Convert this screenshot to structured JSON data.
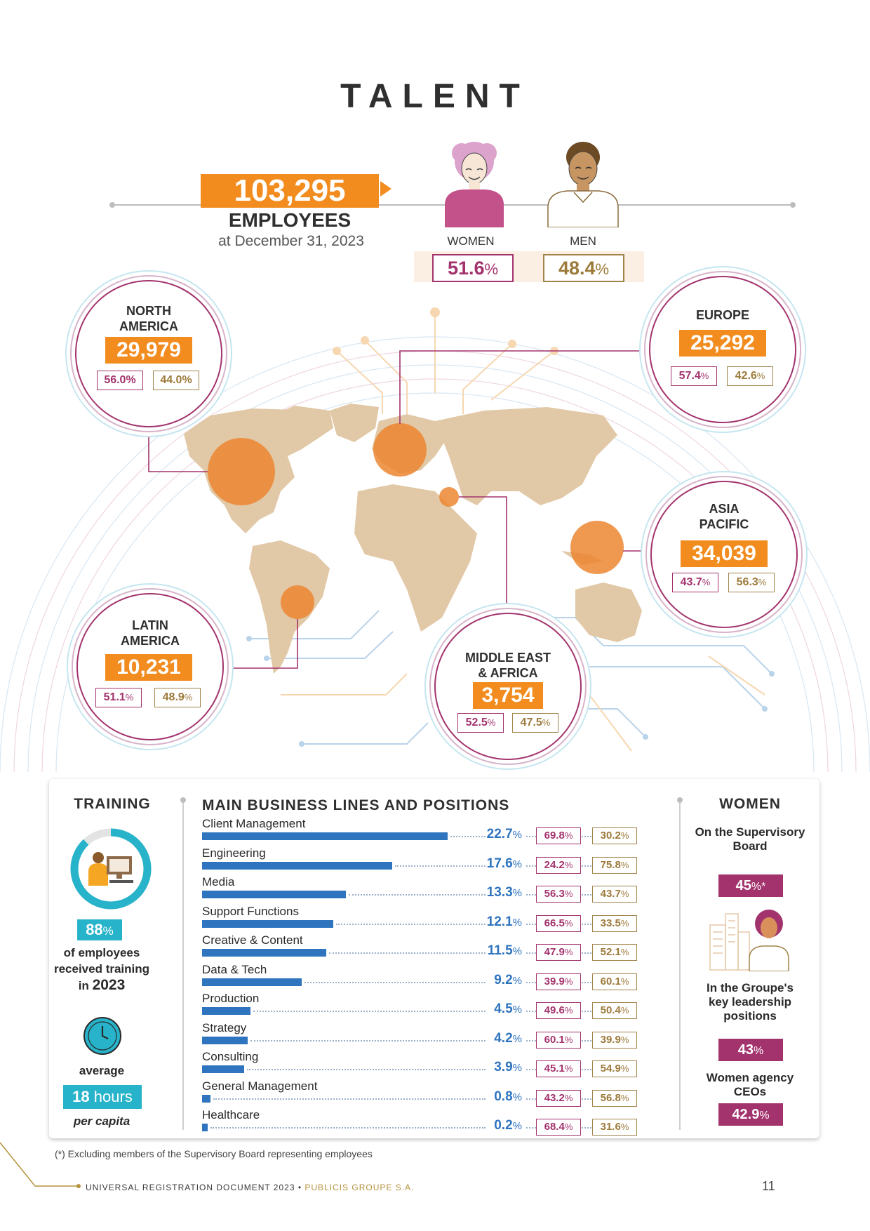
{
  "page_title": "TALENT",
  "employees": {
    "total": "103,295",
    "label": "EMPLOYEES",
    "date": "at December 31, 2023"
  },
  "gender": {
    "women_label": "WOMEN",
    "men_label": "MEN",
    "women_pct": "51.6",
    "men_pct": "48.4",
    "pct_sign": "%"
  },
  "regions": {
    "north_america": {
      "name_line1": "NORTH",
      "name_line2": "AMERICA",
      "count": "29,979",
      "women": "56.0%",
      "men": "44.0%"
    },
    "europe": {
      "name_line1": "EUROPE",
      "count": "25,292",
      "women": "57.4",
      "men": "42.6",
      "pct_sign": "%"
    },
    "asia_pacific": {
      "name_line1": "ASIA",
      "name_line2": "PACIFIC",
      "count": "34,039",
      "women": "43.7",
      "men": "56.3",
      "pct_sign": "%"
    },
    "latin_america": {
      "name_line1": "LATIN",
      "name_line2": "AMERICA",
      "count": "10,231",
      "women": "51.1",
      "men": "48.9",
      "pct_sign": "%"
    },
    "middle_east_africa": {
      "name_line1": "MIDDLE EAST",
      "name_line2": "& AFRICA",
      "count": "3,754",
      "women": "52.5",
      "men": "47.5",
      "pct_sign": "%"
    }
  },
  "training": {
    "title": "TRAINING",
    "pct_value": "88",
    "pct_sign": "%",
    "trained_share": 0.88,
    "line1": "of employees",
    "line2": "received training",
    "line3_prefix": "in ",
    "year": "2023",
    "avg_label": "average",
    "hours_num": "18",
    "hours_unit": " hours",
    "per_capita": "per capita"
  },
  "business_lines": {
    "title": "MAIN BUSINESS LINES AND POSITIONS",
    "pct_sign": "%",
    "rows": [
      {
        "label": "Client Management",
        "value": 22.7,
        "value_text": "22.7",
        "women": "69.8",
        "men": "30.2"
      },
      {
        "label": "Engineering",
        "value": 17.6,
        "value_text": "17.6",
        "women": "24.2",
        "men": "75.8"
      },
      {
        "label": "Media",
        "value": 13.3,
        "value_text": "13.3",
        "women": "56.3",
        "men": "43.7"
      },
      {
        "label": "Support Functions",
        "value": 12.1,
        "value_text": "12.1",
        "women": "66.5",
        "men": "33.5"
      },
      {
        "label": "Creative & Content",
        "value": 11.5,
        "value_text": "11.5",
        "women": "47.9",
        "men": "52.1"
      },
      {
        "label": "Data & Tech",
        "value": 9.2,
        "value_text": "9.2",
        "women": "39.9",
        "men": "60.1"
      },
      {
        "label": "Production",
        "value": 4.5,
        "value_text": "4.5",
        "women": "49.6",
        "men": "50.4"
      },
      {
        "label": "Strategy",
        "value": 4.2,
        "value_text": "4.2",
        "women": "60.1",
        "men": "39.9"
      },
      {
        "label": "Consulting",
        "value": 3.9,
        "value_text": "3.9",
        "women": "45.1",
        "men": "54.9"
      },
      {
        "label": "General Management",
        "value": 0.8,
        "value_text": "0.8",
        "women": "43.2",
        "men": "56.8"
      },
      {
        "label": "Healthcare",
        "value": 0.2,
        "value_text": "0.2",
        "women": "68.4",
        "men": "31.6"
      }
    ]
  },
  "women": {
    "title": "WOMEN",
    "supervisory_label_1": "On the Supervisory",
    "supervisory_label_2": "Board",
    "supervisory_value": "45",
    "supervisory_suffix": "%*",
    "leadership_label_1": "In the Groupe's",
    "leadership_label_2": "key leadership",
    "leadership_label_3": "positions",
    "leadership_value": "43",
    "ceo_label_1": "Women agency",
    "ceo_label_2": "CEOs",
    "ceo_value": "42.9",
    "pct_sign": "%"
  },
  "footnote": "(*) Excluding members of the Supervisory Board representing employees",
  "footer": {
    "doc": "UNIVERSAL REGISTRATION DOCUMENT 2023",
    "bullet": " • ",
    "company": "PUBLICIS GROUPE S.A.",
    "page": "11"
  },
  "colors": {
    "orange": "#f28c1e",
    "women": "#a3336d",
    "men": "#a1844a",
    "blue": "#2e74bf",
    "teal": "#27b3c9"
  }
}
